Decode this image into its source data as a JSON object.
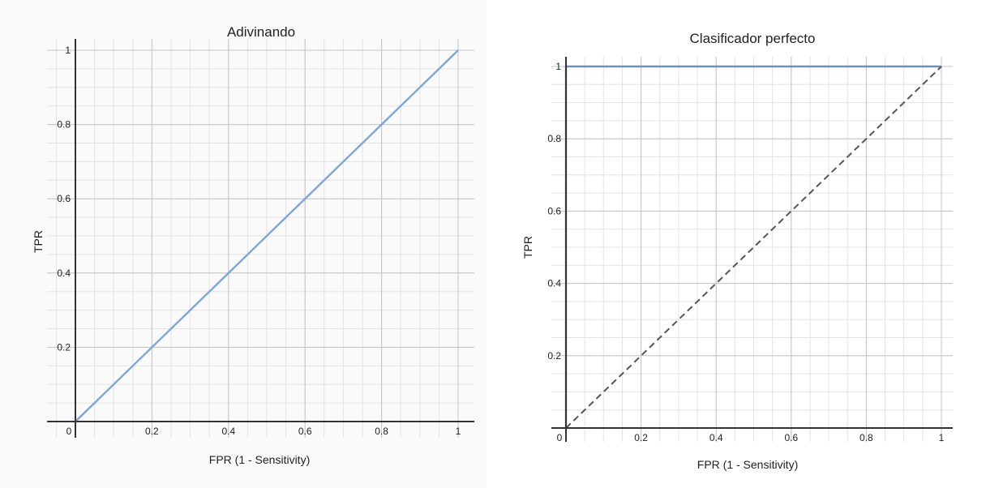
{
  "chart_data": [
    {
      "type": "line",
      "title": "Adivinando",
      "xlabel": "FPR (1 - Sensitivity)",
      "ylabel": "TPR",
      "xlim": [
        0,
        1
      ],
      "ylim": [
        0,
        1
      ],
      "x_ticks": [
        "0",
        "0.2",
        "0.4",
        "0.6",
        "0.8",
        "1"
      ],
      "y_ticks": [
        "0.2",
        "0.4",
        "0.6",
        "0.8",
        "1"
      ],
      "grid": true,
      "series": [
        {
          "color": "#7ea6d6",
          "dash": false,
          "points": [
            [
              0,
              0
            ],
            [
              1,
              1
            ]
          ]
        }
      ]
    },
    {
      "type": "line",
      "title": "Clasificador perfecto",
      "xlabel": "FPR (1 - Sensitivity)",
      "ylabel": "TPR",
      "xlim": [
        0,
        1
      ],
      "ylim": [
        0,
        1
      ],
      "x_ticks": [
        "0",
        "0.2",
        "0.4",
        "0.6",
        "0.8",
        "1"
      ],
      "y_ticks": [
        "0.2",
        "0.4",
        "0.6",
        "0.8",
        "1"
      ],
      "grid": true,
      "series": [
        {
          "color": "#6e8fb8",
          "dash": false,
          "points": [
            [
              0,
              0
            ],
            [
              0,
              1
            ],
            [
              1,
              1
            ]
          ]
        },
        {
          "color": "#555555",
          "dash": true,
          "points": [
            [
              0,
              0
            ],
            [
              1,
              1
            ]
          ]
        }
      ]
    }
  ]
}
